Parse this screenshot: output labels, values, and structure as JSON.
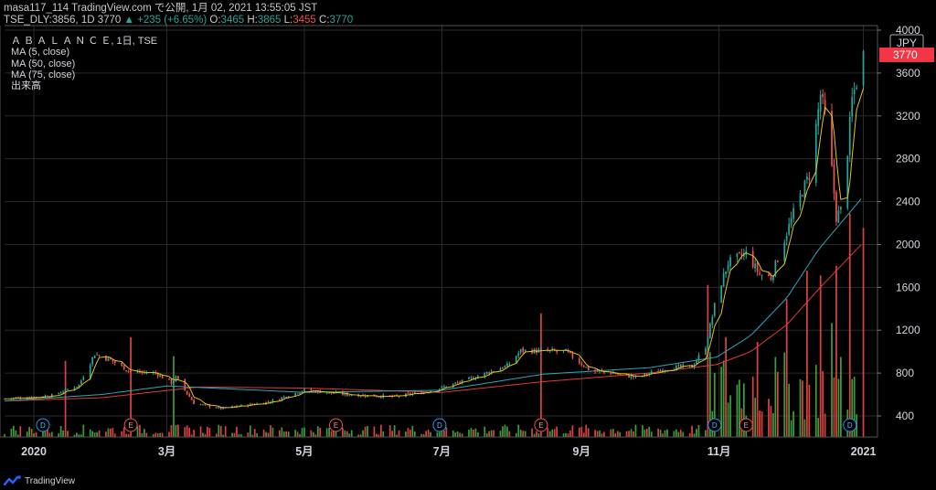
{
  "header": {
    "line1": "masa117_114 TradingView.com で公開, 1月 02, 2021 13:55:05 JST",
    "symbol": "TSE_DLY:3856, 1D",
    "last": "3770",
    "arrow": "▲",
    "change": "+235 (+6.65%)",
    "o_label": "O:",
    "o_val": "3465",
    "h_label": "H:",
    "h_val": "3865",
    "l_label": "L:",
    "l_val": "3455",
    "c_label": "C:",
    "c_val": "3770"
  },
  "legend": {
    "title": "Ａ Ｂ Ａ Ｌ Ａ Ｎ Ｃ Ｅ, 1日, TSE",
    "ma5": "MA (5, close)",
    "ma50": "MA (50, close)",
    "ma75": "MA (75, close)",
    "volume": "出来高"
  },
  "currency": "JPY",
  "footer": {
    "brand": "TradingView"
  },
  "colors": {
    "up": "#26a69a",
    "down": "#ef5350",
    "ma5": "#e6c21a",
    "ma50": "#2aa7b8",
    "ma75": "#e53935",
    "vol_up": "#3d9b3d",
    "vol_down": "#d9433f",
    "grid": "#2b2b2b",
    "price_tag": "#f23645"
  },
  "chart_data": {
    "type": "candlestick",
    "title": "Ａ Ｂ Ａ Ｌ Ａ Ｎ Ｃ Ｅ, 1日, TSE",
    "y_ticks": [
      400,
      800,
      1200,
      1600,
      2000,
      2400,
      2800,
      3200,
      3600,
      4000
    ],
    "x_ticks": [
      "2020",
      "3月",
      "5月",
      "7月",
      "9月",
      "11月",
      "2021"
    ],
    "x_tick_dates": [
      "2020-01-02",
      "2020-03-01",
      "2020-05-01",
      "2020-07-01",
      "2020-09-01",
      "2020-11-01",
      "2021-01-04"
    ],
    "last_price": 3770,
    "ylim": [
      200,
      4000
    ],
    "events": [
      {
        "label": "D",
        "date": "2020-01-06"
      },
      {
        "label": "E",
        "date": "2020-02-14"
      },
      {
        "label": "E",
        "date": "2020-05-15"
      },
      {
        "label": "D",
        "date": "2020-06-30"
      },
      {
        "label": "E",
        "date": "2020-08-14"
      },
      {
        "label": "D",
        "date": "2020-10-30"
      },
      {
        "label": "E",
        "date": "2020-11-13"
      },
      {
        "label": "D",
        "date": "2020-12-29"
      }
    ],
    "price_path": [
      [
        "2019-12-20",
        560
      ],
      [
        "2020-01-10",
        590
      ],
      [
        "2020-01-22",
        690
      ],
      [
        "2020-01-29",
        980
      ],
      [
        "2020-02-05",
        920
      ],
      [
        "2020-02-14",
        810
      ],
      [
        "2020-02-25",
        800
      ],
      [
        "2020-03-03",
        710
      ],
      [
        "2020-03-05",
        760
      ],
      [
        "2020-03-13",
        520
      ],
      [
        "2020-03-25",
        470
      ],
      [
        "2020-04-15",
        530
      ],
      [
        "2020-05-01",
        640
      ],
      [
        "2020-05-20",
        600
      ],
      [
        "2020-06-10",
        580
      ],
      [
        "2020-06-25",
        630
      ],
      [
        "2020-07-10",
        720
      ],
      [
        "2020-07-30",
        870
      ],
      [
        "2020-08-05",
        1010
      ],
      [
        "2020-08-25",
        1000
      ],
      [
        "2020-09-05",
        820
      ],
      [
        "2020-09-15",
        800
      ],
      [
        "2020-09-25",
        760
      ],
      [
        "2020-10-10",
        850
      ],
      [
        "2020-10-20",
        860
      ],
      [
        "2020-10-26",
        1050
      ],
      [
        "2020-10-31",
        1520
      ],
      [
        "2020-11-05",
        1830
      ],
      [
        "2020-11-13",
        1920
      ],
      [
        "2020-11-19",
        1720
      ],
      [
        "2020-11-24",
        1690
      ],
      [
        "2020-11-30",
        2050
      ],
      [
        "2020-12-05",
        2350
      ],
      [
        "2020-12-11",
        2650
      ],
      [
        "2020-12-16",
        3400
      ],
      [
        "2020-12-18",
        3200
      ],
      [
        "2020-12-21",
        2700
      ],
      [
        "2020-12-23",
        2260
      ],
      [
        "2020-12-26",
        2350
      ],
      [
        "2020-12-28",
        2880
      ],
      [
        "2020-12-30",
        3350
      ],
      [
        "2021-01-04",
        3770
      ]
    ],
    "ma50_path": [
      [
        "2019-12-20",
        540
      ],
      [
        "2020-02-01",
        600
      ],
      [
        "2020-03-01",
        680
      ],
      [
        "2020-05-01",
        620
      ],
      [
        "2020-07-01",
        640
      ],
      [
        "2020-08-15",
        790
      ],
      [
        "2020-10-01",
        850
      ],
      [
        "2020-10-31",
        950
      ],
      [
        "2020-11-15",
        1150
      ],
      [
        "2020-12-01",
        1500
      ],
      [
        "2020-12-15",
        1950
      ],
      [
        "2021-01-04",
        2450
      ]
    ],
    "ma75_path": [
      [
        "2019-12-20",
        540
      ],
      [
        "2020-02-01",
        570
      ],
      [
        "2020-03-15",
        670
      ],
      [
        "2020-05-01",
        660
      ],
      [
        "2020-07-01",
        620
      ],
      [
        "2020-08-15",
        720
      ],
      [
        "2020-10-01",
        800
      ],
      [
        "2020-10-31",
        880
      ],
      [
        "2020-11-15",
        1000
      ],
      [
        "2020-12-01",
        1250
      ],
      [
        "2020-12-15",
        1580
      ],
      [
        "2021-01-04",
        2020
      ]
    ],
    "volume_spikes": [
      [
        "2020-01-16",
        160,
        "down"
      ],
      [
        "2020-02-14",
        210,
        "down"
      ],
      [
        "2020-03-04",
        170,
        "up"
      ],
      [
        "2020-08-14",
        260,
        "down"
      ],
      [
        "2020-10-27",
        320,
        "down"
      ],
      [
        "2020-11-04",
        210,
        "down"
      ],
      [
        "2020-11-18",
        200,
        "down"
      ],
      [
        "2020-12-01",
        290,
        "down"
      ],
      [
        "2020-12-10",
        350,
        "down"
      ],
      [
        "2020-12-16",
        340,
        "down"
      ],
      [
        "2020-12-21",
        240,
        "up"
      ],
      [
        "2020-12-23",
        360,
        "down"
      ],
      [
        "2020-12-29",
        470,
        "down"
      ],
      [
        "2021-01-04",
        440,
        "down"
      ]
    ]
  }
}
